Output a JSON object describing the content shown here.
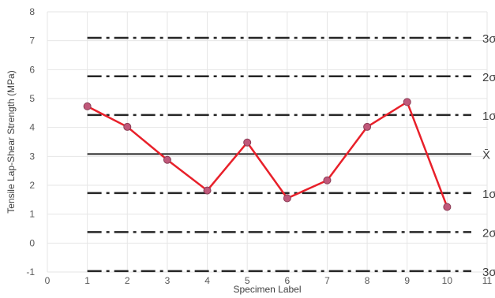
{
  "chart_data": {
    "type": "line",
    "title": "",
    "xlabel": "Specimen Label",
    "ylabel": "Tensile Lap-Shear Strength (MPa)",
    "xlim": [
      0,
      11
    ],
    "ylim": [
      -1,
      8
    ],
    "x_ticks": [
      0,
      1,
      2,
      3,
      4,
      5,
      6,
      7,
      8,
      9,
      10,
      11
    ],
    "y_ticks": [
      -1,
      0,
      1,
      2,
      3,
      4,
      5,
      6,
      7,
      8
    ],
    "grid": true,
    "legend": "none",
    "series": [
      {
        "color": "#e8202a",
        "marker_color": "#c0587a",
        "x": [
          1,
          2,
          3,
          4,
          5,
          6,
          7,
          8,
          9,
          10
        ],
        "y": [
          4.73,
          4.02,
          2.88,
          1.82,
          3.48,
          1.55,
          2.17,
          4.02,
          4.88,
          1.25
        ]
      }
    ],
    "control_lines": [
      {
        "label": "3σ",
        "value": 7.1,
        "style": "dash-dot"
      },
      {
        "label": "2σ",
        "value": 5.77,
        "style": "dash-dot"
      },
      {
        "label": "1σ",
        "value": 4.43,
        "style": "dash-dot"
      },
      {
        "label": "X̄",
        "value": 3.08,
        "style": "solid"
      },
      {
        "label": "1σ",
        "value": 1.73,
        "style": "dash-dot"
      },
      {
        "label": "2σ",
        "value": 0.38,
        "style": "dash-dot"
      },
      {
        "label": "3σ",
        "value": -0.97,
        "style": "dash-dot"
      }
    ],
    "colors": {
      "grid": "#e6e6e6",
      "control": "#262626",
      "tick_text": "#595959",
      "title_text": "#404040"
    }
  }
}
